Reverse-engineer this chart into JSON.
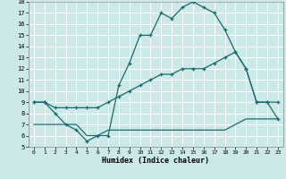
{
  "xlabel": "Humidex (Indice chaleur)",
  "bg_color": "#cce8e8",
  "grid_color": "#ffffff",
  "line_color": "#1a6b6b",
  "xlim": [
    -0.5,
    23.5
  ],
  "ylim": [
    5,
    18
  ],
  "xticks": [
    0,
    1,
    2,
    3,
    4,
    5,
    6,
    7,
    8,
    9,
    10,
    11,
    12,
    13,
    14,
    15,
    16,
    17,
    18,
    19,
    20,
    21,
    22,
    23
  ],
  "yticks": [
    5,
    6,
    7,
    8,
    9,
    10,
    11,
    12,
    13,
    14,
    15,
    16,
    17,
    18
  ],
  "line1_x": [
    0,
    1,
    2,
    3,
    4,
    5,
    6,
    7,
    8,
    9,
    10,
    11,
    12,
    13,
    14,
    15,
    16,
    17,
    18,
    19,
    20,
    21,
    22,
    23
  ],
  "line1_y": [
    9,
    9,
    8,
    7,
    6.5,
    5.5,
    6,
    6,
    10.5,
    12.5,
    15,
    15,
    17,
    16.5,
    17.5,
    18,
    17.5,
    17,
    15.5,
    13.5,
    12,
    9,
    9,
    9
  ],
  "line2_x": [
    0,
    1,
    2,
    3,
    4,
    5,
    6,
    7,
    8,
    9,
    10,
    11,
    12,
    13,
    14,
    15,
    16,
    17,
    18,
    19,
    20,
    21,
    22,
    23
  ],
  "line2_y": [
    9,
    9,
    8.5,
    8.5,
    8.5,
    8.5,
    8.5,
    9,
    9.5,
    10,
    10.5,
    11,
    11.5,
    11.5,
    12,
    12,
    12,
    12.5,
    13,
    13.5,
    12,
    9,
    9,
    7.5
  ],
  "line3_x": [
    0,
    1,
    2,
    3,
    4,
    5,
    6,
    7,
    8,
    9,
    10,
    11,
    12,
    13,
    14,
    15,
    16,
    17,
    18,
    19,
    20,
    21,
    22,
    23
  ],
  "line3_y": [
    7,
    7,
    7,
    7,
    7,
    6,
    6,
    6.5,
    6.5,
    6.5,
    6.5,
    6.5,
    6.5,
    6.5,
    6.5,
    6.5,
    6.5,
    6.5,
    6.5,
    7,
    7.5,
    7.5,
    7.5,
    7.5
  ]
}
